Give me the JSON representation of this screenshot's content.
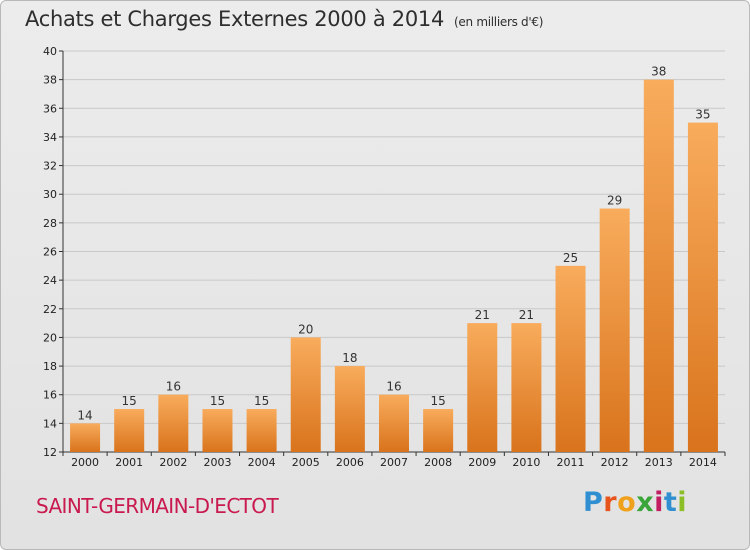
{
  "header": {
    "title": "Achats et Charges Externes 2000 à 2014",
    "subtitle": "(en milliers d'€)"
  },
  "footer": {
    "place": "SAINT-GERMAIN-D'ECTOT",
    "logo_letters": [
      "P",
      "r",
      "o",
      "x",
      "i",
      "t",
      "i"
    ],
    "logo_colors": [
      "#2f8fd0",
      "#e8551c",
      "#f0a11c",
      "#3aa639",
      "#c21f63",
      "#2f8fd0",
      "#8cbf26"
    ]
  },
  "colors": {
    "bar_light": "#f8ac5c",
    "bar_dark": "#d9731c",
    "grid": "#c8c8c8",
    "axis": "#333333"
  },
  "chart_data": {
    "type": "bar",
    "title": "Achats et Charges Externes 2000 à 2014",
    "subtitle": "(en milliers d'€)",
    "categories": [
      "2000",
      "2001",
      "2002",
      "2003",
      "2004",
      "2005",
      "2006",
      "2007",
      "2008",
      "2009",
      "2010",
      "2011",
      "2012",
      "2013",
      "2014"
    ],
    "values": [
      14,
      15,
      16,
      15,
      15,
      20,
      18,
      16,
      15,
      21,
      21,
      25,
      29,
      38,
      35
    ],
    "ylim": [
      12,
      40
    ],
    "yticks": [
      12,
      14,
      16,
      18,
      20,
      22,
      24,
      26,
      28,
      30,
      32,
      34,
      36,
      38,
      40
    ],
    "grid": true,
    "xlabel": "",
    "ylabel": ""
  }
}
